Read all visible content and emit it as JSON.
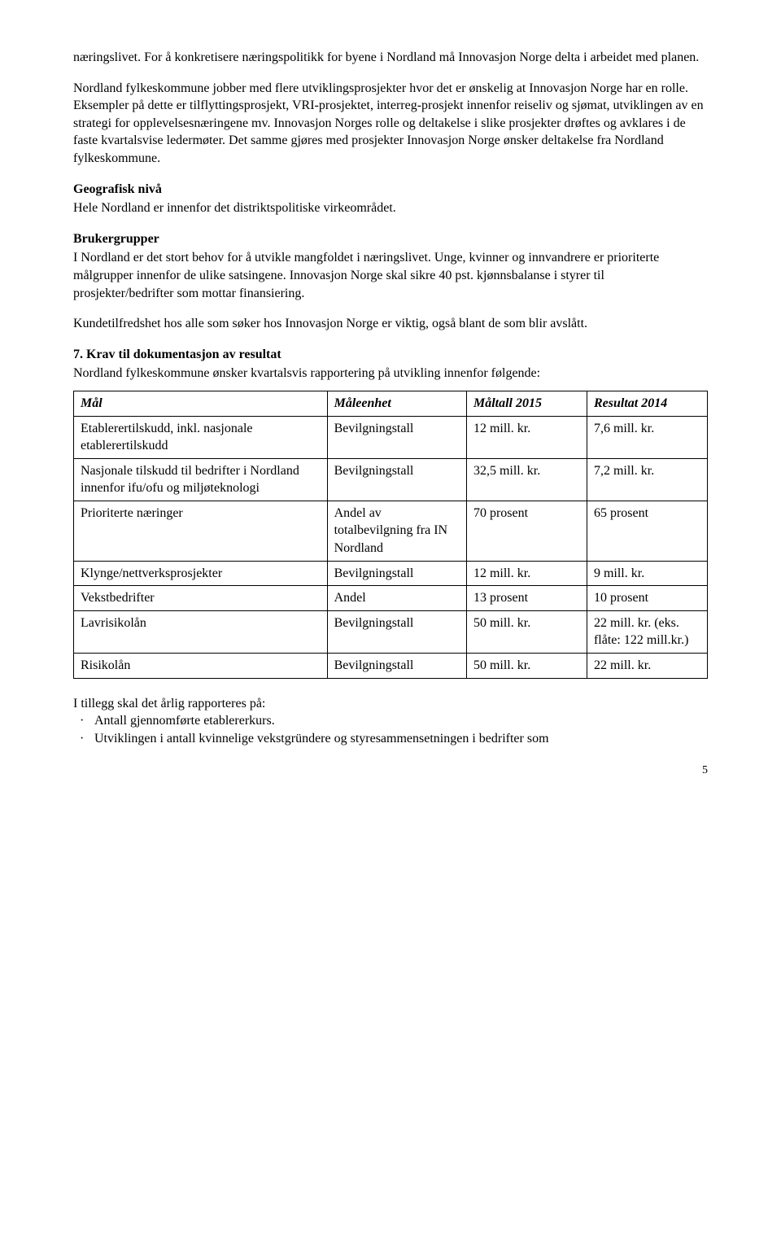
{
  "paragraphs": {
    "p1": "næringslivet. For å konkretisere næringspolitikk for byene i Nordland må Innovasjon Norge delta i arbeidet med planen.",
    "p2": "Nordland fylkeskommune jobber med flere utviklingsprosjekter hvor det er ønskelig at Innovasjon Norge har en rolle. Eksempler på dette er tilflyttingsprosjekt, VRI-prosjektet, interreg-prosjekt innenfor reiseliv og sjømat, utviklingen av en strategi for opplevelsesnæringene mv. Innovasjon Norges rolle og deltakelse i slike prosjekter drøftes og avklares i de faste kvartalsvise ledermøter. Det samme gjøres med prosjekter Innovasjon Norge ønsker deltakelse fra Nordland fylkeskommune.",
    "geo_heading": "Geografisk nivå",
    "geo_body": "Hele Nordland er innenfor det distriktspolitiske virkeområdet.",
    "bruker_heading": "Brukergrupper",
    "bruker_body": "I Nordland er det stort behov for å utvikle mangfoldet i næringslivet. Unge, kvinner og innvandrere er prioriterte målgrupper innenfor de ulike satsingene. Innovasjon Norge skal sikre 40 pst. kjønnsbalanse i styrer til prosjekter/bedrifter som mottar finansiering.",
    "kundetilfredshet": "Kundetilfredshet hos alle som søker hos Innovasjon Norge er viktig, også blant de som blir avslått.",
    "sec7_heading": "7. Krav til dokumentasjon av resultat",
    "sec7_body": "Nordland fylkeskommune ønsker kvartalsvis rapportering på utvikling innenfor følgende:",
    "post_table": "I tillegg skal det årlig rapporteres på:",
    "bullets": [
      "Antall gjennomførte etablererkurs.",
      "Utviklingen i antall kvinnelige vekstgründere og styresammensetningen i bedrifter som"
    ]
  },
  "table": {
    "headers": {
      "maal": "Mål",
      "enhet": "Måleenhet",
      "tall": "Måltall 2015",
      "res": "Resultat 2014"
    },
    "rows": [
      {
        "maal": "Etablerertilskudd, inkl. nasjonale etablerertilskudd",
        "enhet": "Bevilgningstall",
        "tall": "12 mill. kr.",
        "res": "7,6 mill. kr."
      },
      {
        "maal": "Nasjonale tilskudd til bedrifter i Nordland innenfor ifu/ofu og miljøteknologi",
        "enhet": "Bevilgningstall",
        "tall": "32,5 mill. kr.",
        "res": "7,2 mill. kr."
      },
      {
        "maal": "Prioriterte næringer",
        "enhet": "Andel av totalbevilgning fra IN Nordland",
        "tall": "70 prosent",
        "res": "65 prosent"
      },
      {
        "maal": "Klynge/nettverksprosjekter",
        "enhet": "Bevilgningstall",
        "tall": "12 mill. kr.",
        "res": "9 mill. kr."
      },
      {
        "maal": "Vekstbedrifter",
        "enhet": "Andel",
        "tall": "13 prosent",
        "res": "10 prosent"
      },
      {
        "maal": "Lavrisikolån",
        "enhet": "Bevilgningstall",
        "tall": "50 mill. kr.",
        "res": "22 mill. kr. (eks. flåte: 122 mill.kr.)"
      },
      {
        "maal": "Risikolån",
        "enhet": "Bevilgningstall",
        "tall": "50 mill. kr.",
        "res": "22 mill. kr."
      }
    ]
  },
  "page_number": "5"
}
